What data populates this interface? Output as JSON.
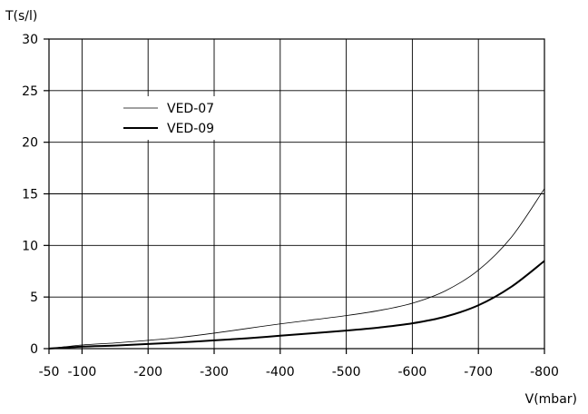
{
  "chart_data": {
    "type": "line",
    "title": "",
    "xlabel": "V(mbar)",
    "ylabel": "T(s/l)",
    "x_ticks": [
      -50,
      -100,
      -200,
      -300,
      -400,
      -500,
      -600,
      -700,
      -800
    ],
    "x_tick_labels": [
      "-50",
      "-100",
      "-200",
      "-300",
      "-400",
      "-500",
      "-600",
      "-700",
      "-800"
    ],
    "y_ticks": [
      0,
      5,
      10,
      15,
      20,
      25,
      30
    ],
    "y_tick_labels": [
      "0",
      "5",
      "10",
      "15",
      "20",
      "25",
      "30"
    ],
    "xlim": [
      -50,
      -800
    ],
    "ylim": [
      0,
      30
    ],
    "grid": true,
    "legend_position": "top-left",
    "series": [
      {
        "name": "VED-07",
        "line_style": "thin",
        "color": "#000000",
        "points": [
          [
            -50,
            0
          ],
          [
            -100,
            0.35
          ],
          [
            -150,
            0.55
          ],
          [
            -200,
            0.8
          ],
          [
            -250,
            1.1
          ],
          [
            -300,
            1.5
          ],
          [
            -350,
            1.95
          ],
          [
            -400,
            2.4
          ],
          [
            -450,
            2.8
          ],
          [
            -500,
            3.2
          ],
          [
            -550,
            3.7
          ],
          [
            -600,
            4.4
          ],
          [
            -650,
            5.6
          ],
          [
            -700,
            7.6
          ],
          [
            -750,
            10.8
          ],
          [
            -800,
            15.5
          ]
        ]
      },
      {
        "name": "VED-09",
        "line_style": "thick",
        "color": "#000000",
        "points": [
          [
            -50,
            0
          ],
          [
            -100,
            0.2
          ],
          [
            -150,
            0.3
          ],
          [
            -200,
            0.45
          ],
          [
            -250,
            0.6
          ],
          [
            -300,
            0.8
          ],
          [
            -350,
            1.0
          ],
          [
            -400,
            1.25
          ],
          [
            -450,
            1.5
          ],
          [
            -500,
            1.75
          ],
          [
            -550,
            2.05
          ],
          [
            -600,
            2.45
          ],
          [
            -650,
            3.1
          ],
          [
            -700,
            4.2
          ],
          [
            -750,
            6.0
          ],
          [
            -800,
            8.5
          ]
        ]
      }
    ]
  }
}
